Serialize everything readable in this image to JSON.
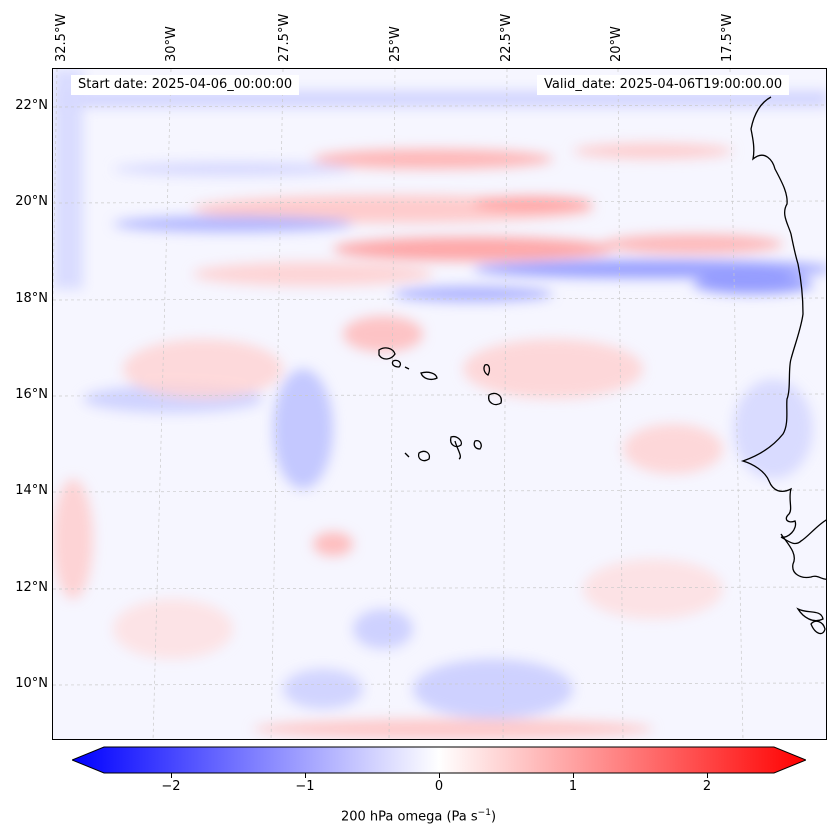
{
  "map": {
    "longitude_labels": [
      "32.5°W",
      "30°W",
      "27.5°W",
      "25°W",
      "22.5°W",
      "20°W",
      "17.5°W"
    ],
    "latitude_labels": [
      "22°N",
      "20°N",
      "18°N",
      "16°N",
      "14°N",
      "12°N",
      "10°N"
    ],
    "start_date_text": "Start date: 2025-04-06_00:00:00",
    "valid_date_text": "Valid_date: 2025-04-06T19:00:00.00"
  },
  "colorbar": {
    "tick_labels": [
      "−2",
      "−1",
      "0",
      "1",
      "2"
    ],
    "tick_values": [
      -2,
      -1,
      0,
      1,
      2
    ],
    "range": [
      -2.5,
      2.5
    ],
    "label": "200 hPa omega (Pa s",
    "label_exponent": "−1",
    "label_close": ")",
    "colors": {
      "low": "#0000ff",
      "mid": "#ffffff",
      "high": "#ff0000"
    }
  }
}
